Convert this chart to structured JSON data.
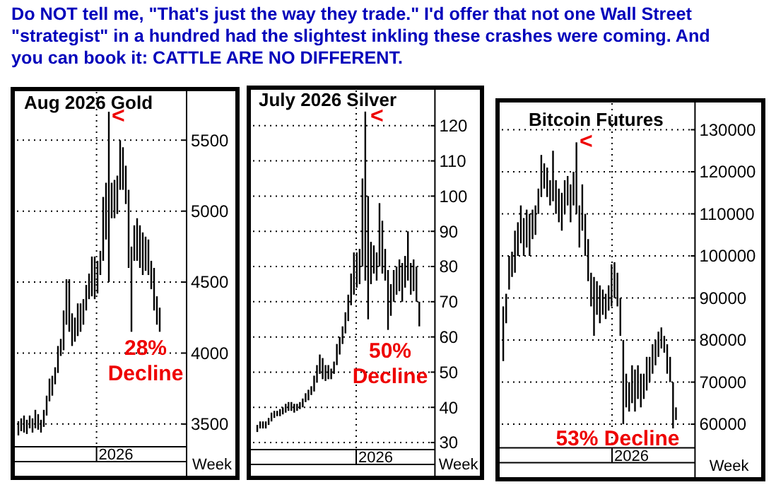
{
  "chart_data": [
    {
      "type": "other",
      "annotations": [
        "Do NOT tell me, \"That's just the way they trade.\" I'd offer that not one Wall Street",
        "\"strategist\" in a hundred had the slightest inkling these crashes were coming. And",
        "you can book it: CATTLE ARE NO DIFFERENT."
      ]
    },
    {
      "type": "bar",
      "title": "Aug 2026 Gold",
      "xlabel": "Week",
      "grid": true,
      "color": "#000000",
      "categories": [
        null,
        null,
        null,
        null,
        null,
        null,
        null,
        null,
        null,
        null,
        null,
        null,
        null,
        null,
        null,
        null,
        null,
        null,
        null,
        null,
        null,
        null,
        null,
        null,
        null,
        null,
        null,
        null,
        null,
        null,
        null,
        null,
        null,
        null,
        null,
        null,
        null,
        null,
        null,
        null,
        null,
        null,
        null,
        null,
        null,
        null,
        null,
        null,
        null,
        null,
        null,
        null,
        null,
        null,
        null,
        null,
        null,
        null,
        null,
        null
      ],
      "base": [
        3420,
        3450,
        3440,
        3430,
        3470,
        3440,
        3470,
        3460,
        3440,
        3480,
        3560,
        3660,
        3700,
        3780,
        3860,
        3980,
        4020,
        4200,
        4150,
        4050,
        4080,
        4120,
        4150,
        4200,
        4300,
        4380,
        4400,
        4380,
        4420,
        4550,
        4650,
        4800,
        4500,
        4950,
        4950,
        4980,
        5150,
        5150,
        5050,
        4600,
        4150,
        4650,
        4650,
        4600,
        4550,
        4580,
        4550,
        4450,
        4300,
        4200,
        4150,
        null,
        null,
        null,
        null,
        null,
        null,
        null,
        null,
        null
      ],
      "values": [
        100,
        90,
        120,
        100,
        90,
        100,
        130,
        110,
        90,
        120,
        140,
        160,
        140,
        120,
        190,
        120,
        280,
        320,
        370,
        230,
        170,
        230,
        200,
        180,
        180,
        180,
        280,
        300,
        230,
        170,
        450,
        400,
        1200,
        250,
        270,
        270,
        350,
        300,
        270,
        550,
        600,
        250,
        300,
        300,
        300,
        240,
        250,
        200,
        300,
        200,
        170,
        null,
        null,
        null,
        null,
        null,
        null,
        null,
        null,
        null
      ],
      "ylim": [
        3340,
        5840
      ],
      "yticks": [
        3500,
        4000,
        4500,
        5000,
        5500
      ],
      "annotations": [
        "<",
        "28%",
        "Decline",
        "2026"
      ]
    },
    {
      "type": "bar",
      "title": "July 2026 Silver",
      "xlabel": "Week",
      "grid": true,
      "color": "#000000",
      "categories": [
        null,
        null,
        null,
        null,
        null,
        null,
        null,
        null,
        null,
        null,
        null,
        null,
        null,
        null,
        null,
        null,
        null,
        null,
        null,
        null,
        null,
        null,
        null,
        null,
        null,
        null,
        null,
        null,
        null,
        null,
        null,
        null,
        null,
        null,
        null,
        null,
        null,
        null,
        null,
        null,
        null,
        null,
        null,
        null,
        null,
        null,
        null,
        null,
        null,
        null,
        null,
        null,
        null,
        null,
        null,
        null,
        null,
        null,
        null,
        null,
        null,
        null,
        null,
        null
      ],
      "base": [
        null,
        33,
        34,
        34,
        34,
        35,
        36,
        37,
        37.5,
        37.5,
        38,
        38.5,
        39,
        39,
        38.5,
        39,
        39.5,
        40,
        41.5,
        42,
        43.5,
        44.5,
        47,
        49.5,
        48,
        47.5,
        48,
        48,
        49.5,
        52,
        55,
        58,
        61,
        64.5,
        69,
        72,
        74,
        75,
        80,
        76,
        65,
        75,
        78,
        76,
        80,
        78,
        76,
        62,
        66,
        70,
        72,
        73,
        70,
        74,
        76,
        72,
        73,
        70,
        63,
        null,
        null,
        null,
        null,
        null
      ],
      "values": [
        null,
        2,
        2,
        2,
        2,
        2,
        2.5,
        2,
        1.5,
        2,
        2,
        2.5,
        2.5,
        2.5,
        2.5,
        2,
        2,
        2.5,
        2.5,
        3,
        2.5,
        4.5,
        5,
        5.5,
        6,
        4.5,
        4,
        3,
        3.5,
        6,
        5,
        5,
        6,
        7.5,
        9,
        12,
        10,
        10,
        25,
        48,
        35,
        12,
        8,
        8,
        18,
        15,
        9,
        17,
        9,
        9,
        8,
        9,
        11,
        9,
        14,
        9,
        9,
        10,
        7,
        null,
        null,
        null,
        null,
        null
      ],
      "ylim": [
        28,
        130
      ],
      "yticks": [
        30,
        40,
        50,
        60,
        70,
        80,
        90,
        100,
        110,
        120
      ],
      "annotations": [
        "<",
        "50%",
        "Decline",
        "2026"
      ]
    },
    {
      "type": "bar",
      "title": "Bitcoin Futures",
      "xlabel": "Week",
      "grid": true,
      "color": "#000000",
      "categories": [
        null,
        null,
        null,
        null,
        null,
        null,
        null,
        null,
        null,
        null,
        null,
        null,
        null,
        null,
        null,
        null,
        null,
        null,
        null,
        null,
        null,
        null,
        null,
        null,
        null,
        null,
        null,
        null,
        null,
        null,
        null,
        null,
        null,
        null,
        null,
        null,
        null,
        null,
        null,
        null,
        null,
        null,
        null,
        null,
        null,
        null,
        null,
        null,
        null,
        null,
        null,
        null,
        null,
        null,
        null,
        null,
        null,
        null,
        null,
        null,
        null,
        null,
        null,
        null,
        null,
        null
      ],
      "base": [
        75000,
        84000,
        92000,
        95000,
        96000,
        100000,
        103000,
        100000,
        102000,
        100000,
        104000,
        105000,
        110000,
        114000,
        116000,
        114000,
        112000,
        113000,
        110000,
        108000,
        106000,
        110000,
        112000,
        108000,
        112000,
        110000,
        102000,
        106000,
        100000,
        94000,
        88000,
        81000,
        86000,
        84000,
        86000,
        85000,
        87000,
        88000,
        90000,
        88000,
        81000,
        60000,
        64000,
        63000,
        65000,
        63000,
        66000,
        64000,
        66000,
        68000,
        70000,
        72000,
        74000,
        76000,
        78000,
        77000,
        72000,
        70000,
        59000,
        61000,
        null,
        null,
        null,
        null,
        null,
        null
      ],
      "values": [
        13000,
        7000,
        8000,
        6000,
        10000,
        8000,
        9000,
        9000,
        9000,
        10000,
        7000,
        7000,
        6000,
        10000,
        6000,
        7000,
        6000,
        12000,
        8000,
        8000,
        9000,
        8000,
        7000,
        9000,
        8000,
        17000,
        10000,
        11000,
        10000,
        10000,
        8000,
        14000,
        8000,
        9000,
        6000,
        6000,
        6000,
        10000,
        8500,
        8000,
        9000,
        20000,
        8000,
        7000,
        9000,
        10000,
        8000,
        8000,
        6000,
        8000,
        6000,
        7000,
        6000,
        6000,
        5000,
        4000,
        7000,
        6000,
        11000,
        3000,
        null,
        null,
        null,
        null,
        null,
        null
      ],
      "ylim": [
        54400,
        136300
      ],
      "yticks": [
        60000,
        70000,
        80000,
        90000,
        100000,
        110000,
        120000,
        130000
      ],
      "annotations": [
        "<",
        "53% Decline",
        "2026"
      ]
    }
  ]
}
